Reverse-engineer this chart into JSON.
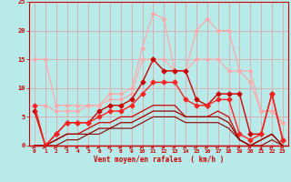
{
  "xlim": [
    -0.5,
    23.5
  ],
  "ylim": [
    0,
    25
  ],
  "yticks": [
    0,
    5,
    10,
    15,
    20,
    25
  ],
  "xticks": [
    0,
    1,
    2,
    3,
    4,
    5,
    6,
    7,
    8,
    9,
    10,
    11,
    12,
    13,
    14,
    15,
    16,
    17,
    18,
    19,
    20,
    21,
    22,
    23
  ],
  "bg_color": "#b8eaea",
  "grid_color": "#ee8888",
  "xlabel": "Vent moyen/en rafales  ( km/h )",
  "lines": [
    {
      "x": [
        0,
        1,
        2,
        3,
        4,
        5,
        6,
        7,
        8,
        9,
        10,
        11,
        12,
        13,
        14,
        15,
        16,
        17,
        18,
        19,
        20,
        21,
        22,
        23
      ],
      "y": [
        15,
        15,
        7,
        7,
        7,
        7,
        7,
        9,
        9,
        10,
        17,
        23,
        22,
        13,
        13,
        20,
        22,
        20,
        20,
        13,
        13,
        6,
        6,
        4
      ],
      "color": "#ffaaaa",
      "lw": 0.9,
      "marker": "D",
      "ms": 2.0,
      "zorder": 3
    },
    {
      "x": [
        0,
        1,
        2,
        3,
        4,
        5,
        6,
        7,
        8,
        9,
        10,
        11,
        12,
        13,
        14,
        15,
        16,
        17,
        18,
        19,
        20,
        21,
        22,
        23
      ],
      "y": [
        7,
        7,
        6,
        6,
        6,
        7,
        7,
        8,
        8,
        9,
        15,
        15,
        15,
        13,
        13,
        15,
        15,
        15,
        13,
        13,
        11,
        6,
        6,
        4
      ],
      "color": "#ffaaaa",
      "lw": 0.9,
      "marker": "D",
      "ms": 2.0,
      "zorder": 3
    },
    {
      "x": [
        0,
        1,
        2,
        3,
        4,
        5,
        6,
        7,
        8,
        9,
        10,
        11,
        12,
        13,
        14,
        15,
        16,
        17,
        18,
        19,
        20,
        21,
        22,
        23
      ],
      "y": [
        6,
        0,
        2,
        4,
        4,
        4,
        6,
        7,
        7,
        8,
        11,
        15,
        13,
        13,
        13,
        8,
        7,
        9,
        9,
        9,
        2,
        2,
        9,
        1
      ],
      "color": "#cc0000",
      "lw": 1.0,
      "marker": "D",
      "ms": 2.5,
      "zorder": 5
    },
    {
      "x": [
        0,
        1,
        2,
        3,
        4,
        5,
        6,
        7,
        8,
        9,
        10,
        11,
        12,
        13,
        14,
        15,
        16,
        17,
        18,
        19,
        20,
        21,
        22,
        23
      ],
      "y": [
        7,
        0,
        2,
        4,
        4,
        4,
        5,
        6,
        6,
        7,
        9,
        11,
        11,
        11,
        8,
        7,
        7,
        8,
        8,
        2,
        1,
        2,
        9,
        1
      ],
      "color": "#ff2222",
      "lw": 1.0,
      "marker": "D",
      "ms": 2.5,
      "zorder": 5
    },
    {
      "x": [
        0,
        1,
        2,
        3,
        4,
        5,
        6,
        7,
        8,
        9,
        10,
        11,
        12,
        13,
        14,
        15,
        16,
        17,
        18,
        19,
        20,
        21,
        22,
        23
      ],
      "y": [
        0,
        0,
        1,
        2,
        2,
        3,
        4,
        4,
        5,
        5,
        6,
        7,
        7,
        7,
        5,
        5,
        5,
        6,
        5,
        1,
        0,
        1,
        2,
        0
      ],
      "color": "#cc0000",
      "lw": 0.9,
      "marker": null,
      "ms": 0,
      "zorder": 4
    },
    {
      "x": [
        0,
        1,
        2,
        3,
        4,
        5,
        6,
        7,
        8,
        9,
        10,
        11,
        12,
        13,
        14,
        15,
        16,
        17,
        18,
        19,
        20,
        21,
        22,
        23
      ],
      "y": [
        0,
        0,
        1,
        2,
        2,
        2,
        3,
        3,
        4,
        4,
        5,
        6,
        6,
        6,
        5,
        5,
        5,
        5,
        4,
        1,
        0,
        1,
        2,
        0
      ],
      "color": "#990000",
      "lw": 0.9,
      "marker": null,
      "ms": 0,
      "zorder": 4
    },
    {
      "x": [
        0,
        1,
        2,
        3,
        4,
        5,
        6,
        7,
        8,
        9,
        10,
        11,
        12,
        13,
        14,
        15,
        16,
        17,
        18,
        19,
        20,
        21,
        22,
        23
      ],
      "y": [
        0,
        0,
        0,
        1,
        1,
        2,
        2,
        3,
        3,
        3,
        4,
        5,
        5,
        5,
        4,
        4,
        4,
        4,
        3,
        1,
        0,
        0,
        1,
        0
      ],
      "color": "#880000",
      "lw": 0.8,
      "marker": null,
      "ms": 0,
      "zorder": 4
    }
  ],
  "arrow_color": "#cc0000",
  "tick_color": "#cc0000",
  "label_fontsize": 5.5,
  "tick_fontsize": 4.5
}
